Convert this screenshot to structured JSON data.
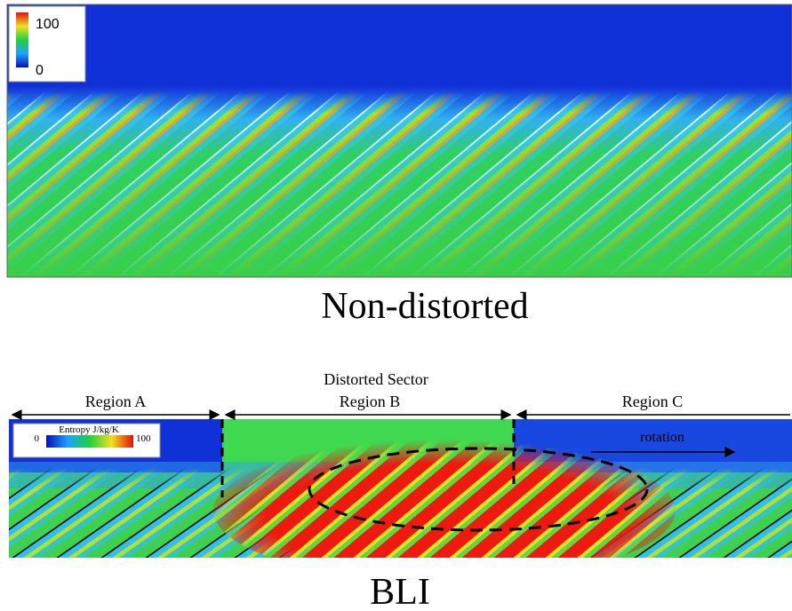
{
  "top_panel": {
    "colorbar": {
      "max": 100,
      "min": 0
    },
    "caption": "Non-distorted"
  },
  "bottom_panel": {
    "sector_label": "Distorted Sector",
    "regions": [
      "Region A",
      "Region B",
      "Region C"
    ],
    "colorbar": {
      "min": 0,
      "title": "Entropy J/kg/K",
      "max": 100
    },
    "annotation": "rotation",
    "caption": "BLI"
  }
}
